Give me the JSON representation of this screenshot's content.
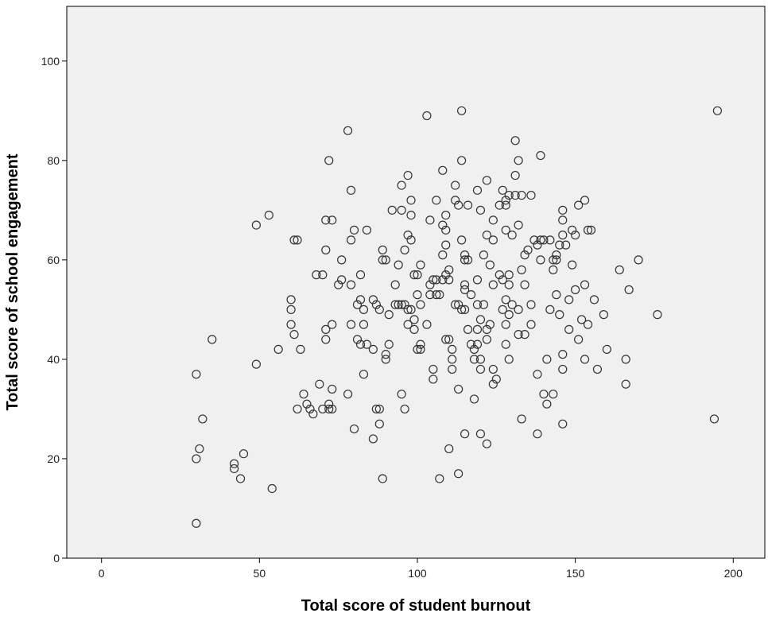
{
  "chart_data": {
    "type": "scatter",
    "title": "",
    "xlabel": "Total score of student burnout",
    "ylabel": "Total score of school engagement",
    "xlim": [
      -11,
      210
    ],
    "ylim": [
      0,
      111
    ],
    "xticks": [
      0,
      50,
      100,
      150,
      200
    ],
    "yticks": [
      0,
      20,
      40,
      60,
      80,
      100
    ],
    "grid": false,
    "colors": {
      "plot_background": "#f0f0f0",
      "marker_edge": "#333333",
      "axis": "#000000"
    },
    "points": [
      [
        30,
        37
      ],
      [
        31,
        22
      ],
      [
        30,
        20
      ],
      [
        30,
        7
      ],
      [
        32,
        28
      ],
      [
        35,
        44
      ],
      [
        42,
        19
      ],
      [
        42,
        18
      ],
      [
        44,
        16
      ],
      [
        45,
        21
      ],
      [
        49,
        67
      ],
      [
        49,
        39
      ],
      [
        53,
        69
      ],
      [
        54,
        14
      ],
      [
        56,
        42
      ],
      [
        60,
        52
      ],
      [
        60,
        50
      ],
      [
        60,
        47
      ],
      [
        61,
        45
      ],
      [
        61,
        64
      ],
      [
        62,
        64
      ],
      [
        62,
        30
      ],
      [
        63,
        42
      ],
      [
        64,
        33
      ],
      [
        65,
        31
      ],
      [
        66,
        30
      ],
      [
        67,
        29
      ],
      [
        68,
        57
      ],
      [
        69,
        35
      ],
      [
        70,
        57
      ],
      [
        70,
        30
      ],
      [
        71,
        68
      ],
      [
        71,
        62
      ],
      [
        71,
        46
      ],
      [
        71,
        44
      ],
      [
        72,
        80
      ],
      [
        72,
        31
      ],
      [
        72,
        30
      ],
      [
        73,
        68
      ],
      [
        73,
        47
      ],
      [
        73,
        34
      ],
      [
        73,
        30
      ],
      [
        75,
        55
      ],
      [
        76,
        60
      ],
      [
        76,
        56
      ],
      [
        78,
        86
      ],
      [
        78,
        33
      ],
      [
        79,
        74
      ],
      [
        79,
        64
      ],
      [
        79,
        55
      ],
      [
        79,
        47
      ],
      [
        80,
        66
      ],
      [
        80,
        26
      ],
      [
        81,
        51
      ],
      [
        81,
        44
      ],
      [
        82,
        57
      ],
      [
        82,
        52
      ],
      [
        82,
        43
      ],
      [
        83,
        50
      ],
      [
        83,
        47
      ],
      [
        83,
        37
      ],
      [
        84,
        66
      ],
      [
        84,
        43
      ],
      [
        86,
        52
      ],
      [
        86,
        42
      ],
      [
        86,
        24
      ],
      [
        87,
        51
      ],
      [
        87,
        30
      ],
      [
        88,
        50
      ],
      [
        88,
        30
      ],
      [
        88,
        27
      ],
      [
        89,
        62
      ],
      [
        89,
        60
      ],
      [
        89,
        16
      ],
      [
        90,
        60
      ],
      [
        90,
        41
      ],
      [
        90,
        40
      ],
      [
        91,
        49
      ],
      [
        91,
        43
      ],
      [
        92,
        70
      ],
      [
        93,
        55
      ],
      [
        93,
        51
      ],
      [
        94,
        59
      ],
      [
        94,
        51
      ],
      [
        95,
        75
      ],
      [
        95,
        70
      ],
      [
        95,
        51
      ],
      [
        95,
        33
      ],
      [
        96,
        62
      ],
      [
        96,
        51
      ],
      [
        96,
        30
      ],
      [
        97,
        77
      ],
      [
        97,
        65
      ],
      [
        97,
        50
      ],
      [
        97,
        47
      ],
      [
        98,
        72
      ],
      [
        98,
        69
      ],
      [
        98,
        64
      ],
      [
        98,
        50
      ],
      [
        99,
        57
      ],
      [
        99,
        48
      ],
      [
        99,
        46
      ],
      [
        100,
        57
      ],
      [
        100,
        53
      ],
      [
        100,
        42
      ],
      [
        101,
        59
      ],
      [
        101,
        51
      ],
      [
        101,
        43
      ],
      [
        101,
        42
      ],
      [
        103,
        89
      ],
      [
        103,
        47
      ],
      [
        104,
        68
      ],
      [
        104,
        55
      ],
      [
        104,
        53
      ],
      [
        105,
        56
      ],
      [
        105,
        38
      ],
      [
        105,
        36
      ],
      [
        106,
        72
      ],
      [
        106,
        56
      ],
      [
        106,
        53
      ],
      [
        107,
        53
      ],
      [
        107,
        16
      ],
      [
        108,
        78
      ],
      [
        108,
        67
      ],
      [
        108,
        61
      ],
      [
        108,
        56
      ],
      [
        109,
        69
      ],
      [
        109,
        66
      ],
      [
        109,
        63
      ],
      [
        109,
        57
      ],
      [
        109,
        44
      ],
      [
        110,
        58
      ],
      [
        110,
        56
      ],
      [
        110,
        44
      ],
      [
        110,
        22
      ],
      [
        111,
        42
      ],
      [
        111,
        40
      ],
      [
        111,
        38
      ],
      [
        112,
        75
      ],
      [
        112,
        72
      ],
      [
        112,
        51
      ],
      [
        113,
        71
      ],
      [
        113,
        51
      ],
      [
        113,
        34
      ],
      [
        113,
        17
      ],
      [
        114,
        90
      ],
      [
        114,
        80
      ],
      [
        114,
        64
      ],
      [
        114,
        50
      ],
      [
        115,
        61
      ],
      [
        115,
        60
      ],
      [
        115,
        55
      ],
      [
        115,
        54
      ],
      [
        115,
        50
      ],
      [
        115,
        25
      ],
      [
        116,
        71
      ],
      [
        116,
        60
      ],
      [
        116,
        46
      ],
      [
        117,
        53
      ],
      [
        117,
        43
      ],
      [
        118,
        42
      ],
      [
        118,
        40
      ],
      [
        118,
        32
      ],
      [
        119,
        74
      ],
      [
        119,
        56
      ],
      [
        119,
        51
      ],
      [
        119,
        46
      ],
      [
        119,
        43
      ],
      [
        120,
        70
      ],
      [
        120,
        48
      ],
      [
        120,
        40
      ],
      [
        120,
        38
      ],
      [
        120,
        25
      ],
      [
        121,
        61
      ],
      [
        121,
        51
      ],
      [
        122,
        76
      ],
      [
        122,
        65
      ],
      [
        122,
        46
      ],
      [
        122,
        44
      ],
      [
        122,
        23
      ],
      [
        123,
        59
      ],
      [
        123,
        47
      ],
      [
        124,
        68
      ],
      [
        124,
        64
      ],
      [
        124,
        55
      ],
      [
        124,
        38
      ],
      [
        124,
        35
      ],
      [
        125,
        36
      ],
      [
        126,
        71
      ],
      [
        126,
        57
      ],
      [
        127,
        74
      ],
      [
        127,
        56
      ],
      [
        127,
        50
      ],
      [
        128,
        72
      ],
      [
        128,
        71
      ],
      [
        128,
        66
      ],
      [
        128,
        52
      ],
      [
        128,
        47
      ],
      [
        128,
        43
      ],
      [
        129,
        73
      ],
      [
        129,
        57
      ],
      [
        129,
        55
      ],
      [
        129,
        49
      ],
      [
        129,
        40
      ],
      [
        130,
        65
      ],
      [
        130,
        51
      ],
      [
        131,
        84
      ],
      [
        131,
        77
      ],
      [
        131,
        73
      ],
      [
        132,
        80
      ],
      [
        132,
        67
      ],
      [
        132,
        50
      ],
      [
        132,
        45
      ],
      [
        133,
        73
      ],
      [
        133,
        58
      ],
      [
        133,
        28
      ],
      [
        134,
        61
      ],
      [
        134,
        55
      ],
      [
        134,
        45
      ],
      [
        135,
        62
      ],
      [
        136,
        73
      ],
      [
        136,
        51
      ],
      [
        136,
        47
      ],
      [
        137,
        64
      ],
      [
        138,
        63
      ],
      [
        138,
        37
      ],
      [
        138,
        25
      ],
      [
        139,
        81
      ],
      [
        139,
        64
      ],
      [
        139,
        60
      ],
      [
        140,
        64
      ],
      [
        140,
        33
      ],
      [
        141,
        40
      ],
      [
        141,
        31
      ],
      [
        142,
        64
      ],
      [
        142,
        50
      ],
      [
        143,
        60
      ],
      [
        143,
        58
      ],
      [
        143,
        33
      ],
      [
        144,
        61
      ],
      [
        144,
        60
      ],
      [
        144,
        53
      ],
      [
        145,
        63
      ],
      [
        145,
        49
      ],
      [
        146,
        70
      ],
      [
        146,
        68
      ],
      [
        146,
        65
      ],
      [
        146,
        41
      ],
      [
        146,
        38
      ],
      [
        146,
        27
      ],
      [
        147,
        63
      ],
      [
        148,
        52
      ],
      [
        148,
        46
      ],
      [
        149,
        66
      ],
      [
        149,
        59
      ],
      [
        150,
        65
      ],
      [
        150,
        54
      ],
      [
        151,
        71
      ],
      [
        151,
        44
      ],
      [
        152,
        48
      ],
      [
        153,
        72
      ],
      [
        153,
        55
      ],
      [
        153,
        40
      ],
      [
        154,
        66
      ],
      [
        154,
        47
      ],
      [
        155,
        66
      ],
      [
        156,
        52
      ],
      [
        157,
        38
      ],
      [
        159,
        49
      ],
      [
        160,
        42
      ],
      [
        164,
        58
      ],
      [
        166,
        40
      ],
      [
        166,
        35
      ],
      [
        167,
        54
      ],
      [
        170,
        60
      ],
      [
        176,
        49
      ],
      [
        194,
        28
      ],
      [
        195,
        90
      ]
    ]
  }
}
